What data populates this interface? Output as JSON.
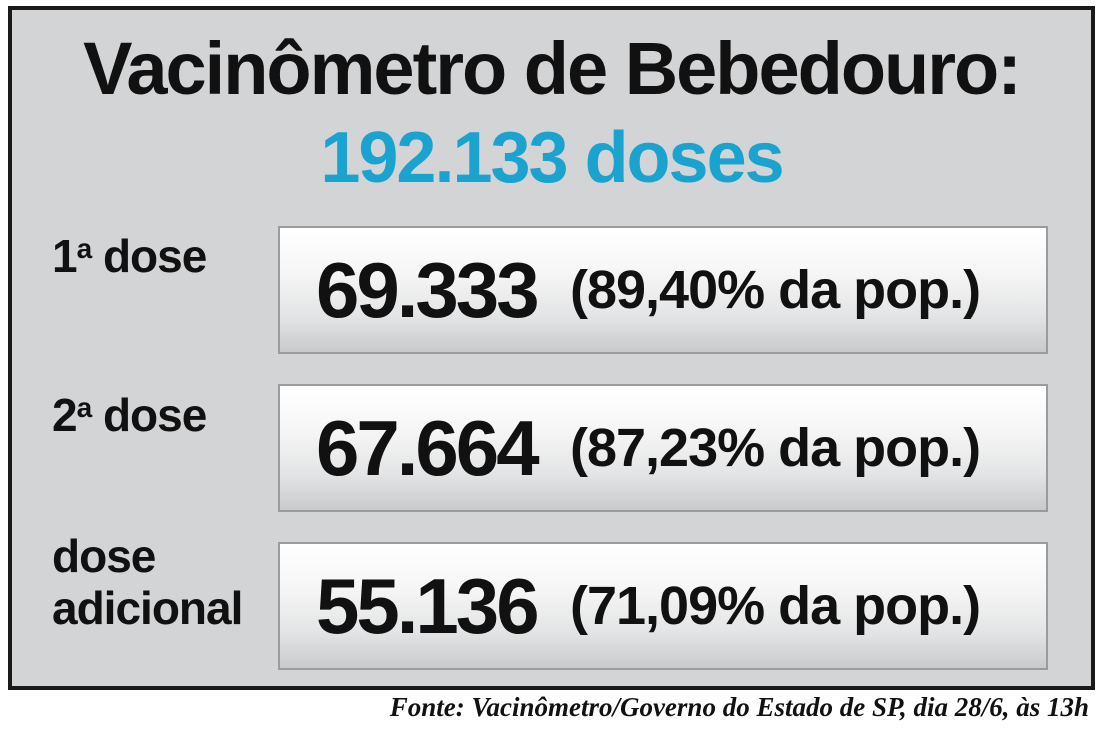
{
  "header": {
    "title": "Vacinômetro de Bebedouro:",
    "total": "192.133 doses"
  },
  "rows": [
    {
      "label_num": "1",
      "label_sup": "a",
      "label_text": " dose",
      "value": "69.333",
      "percent": "(89,40% da pop.)"
    },
    {
      "label_num": "2",
      "label_sup": "a",
      "label_text": " dose",
      "value": "67.664",
      "percent": "(87,23% da pop.)"
    },
    {
      "label_line1": "dose",
      "label_line2": "adicional",
      "value": "55.136",
      "percent": "(71,09% da pop.)"
    }
  ],
  "footer": {
    "source": "Fonte: Vacinômetro/Governo do Estado de SP, dia 28/6, às 13h"
  },
  "colors": {
    "accent": "#1aa3cf",
    "panel": "#d3d4d6",
    "text": "#111111"
  }
}
